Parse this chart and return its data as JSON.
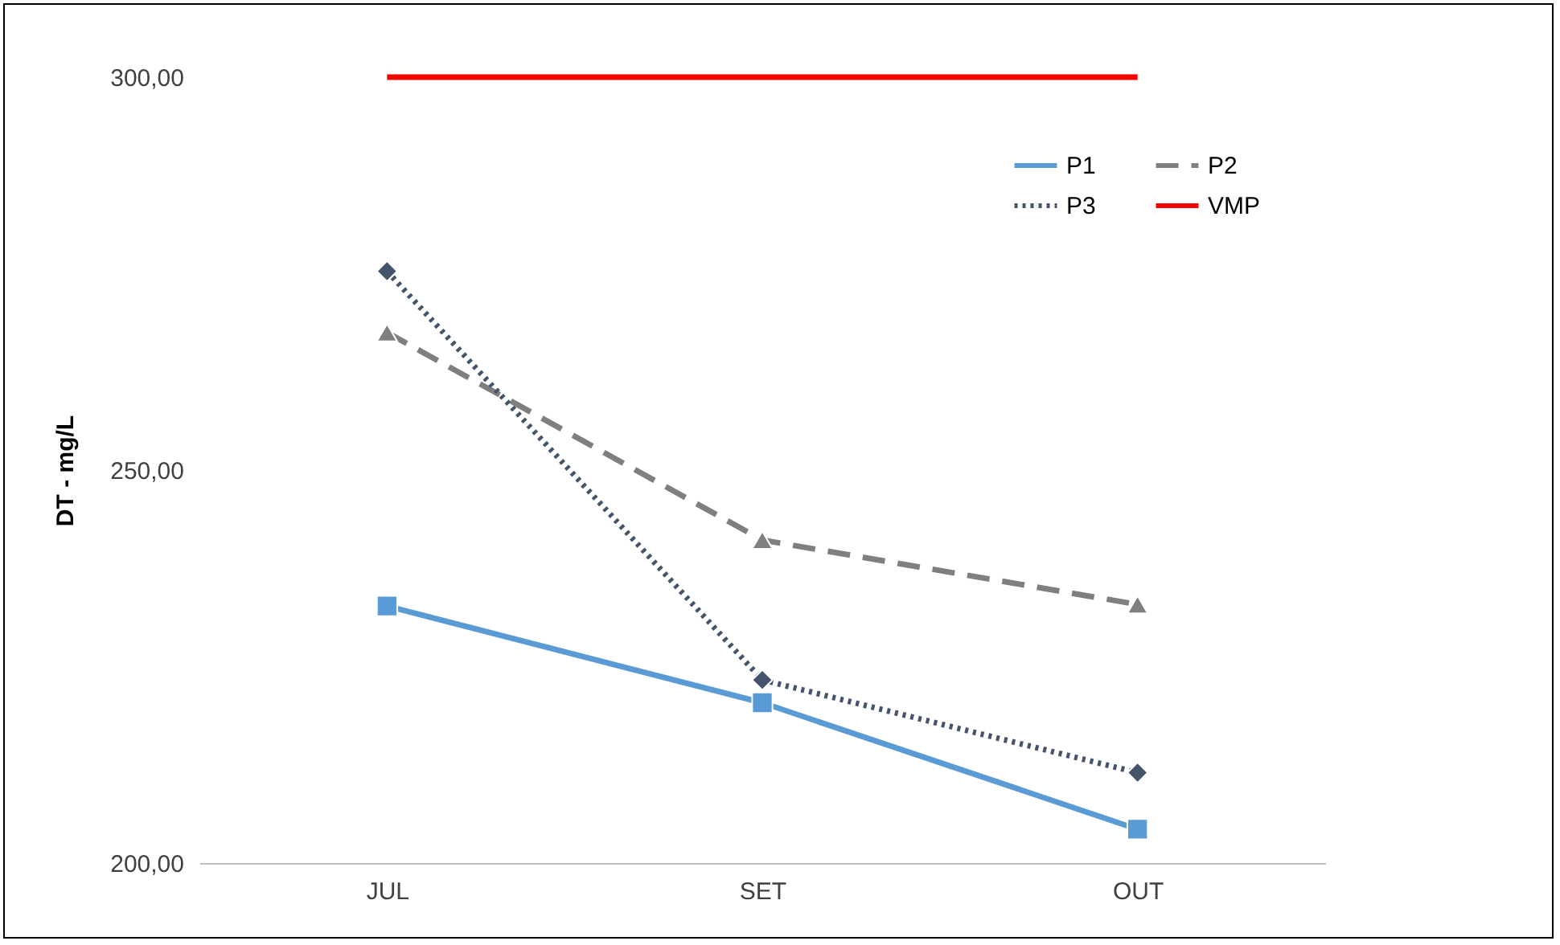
{
  "chart_data": {
    "type": "line",
    "ylabel": "DT - mg/L",
    "categories": [
      "JUL",
      "SET",
      "OUT"
    ],
    "series": [
      {
        "name": "P1",
        "color": "#5b9bd5",
        "marker": "square",
        "line_style": "solid",
        "values": [
          232.7,
          220.4,
          204.3
        ]
      },
      {
        "name": "P2",
        "color": "#7f7f7f",
        "marker": "triangle",
        "line_style": "dashed",
        "values": [
          267.5,
          241.1,
          232.9
        ]
      },
      {
        "name": "P3",
        "color": "#44546a",
        "marker": "diamond",
        "line_style": "dotted",
        "values": [
          275.3,
          223.3,
          211.5
        ]
      },
      {
        "name": "VMP",
        "color": "#ff0000",
        "marker": "none",
        "line_style": "solid",
        "values": [
          300,
          300,
          300
        ]
      }
    ],
    "ylim": [
      200,
      300
    ],
    "yticks": [
      {
        "value": 200,
        "label": "200,00"
      },
      {
        "value": 250,
        "label": "250,00"
      },
      {
        "value": 300,
        "label": "300,00"
      }
    ],
    "grid": false,
    "legend": "top right"
  }
}
